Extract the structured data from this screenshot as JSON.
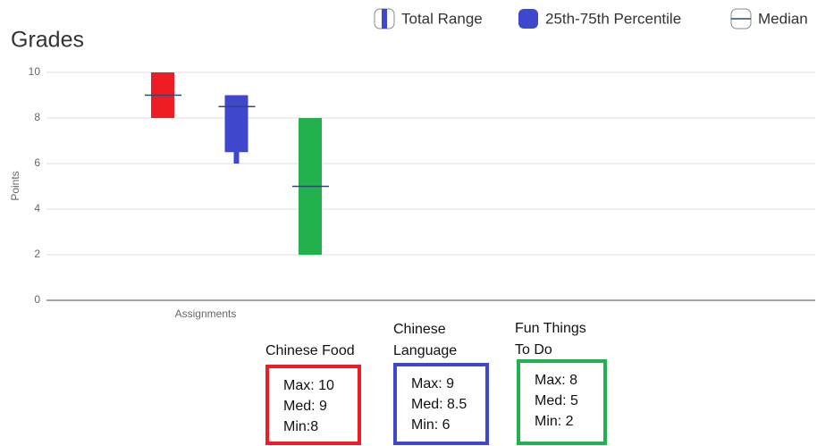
{
  "chart_data": {
    "type": "box",
    "title": "Grades",
    "y_label": "Points",
    "x_label": "Assignments",
    "legend": [
      "Total Range",
      "25th-75th Percentile",
      "Median"
    ],
    "ylim": [
      0,
      10
    ],
    "yticks": [
      0,
      2,
      4,
      6,
      8,
      10
    ],
    "grid": true,
    "median_color": "#2d4a6e",
    "series": [
      {
        "color": "#ee1c25",
        "min": 8,
        "q1": 8,
        "median": 9,
        "q3": 10,
        "max": 10
      },
      {
        "color": "#3f48cc",
        "min": 6,
        "q1": 6.5,
        "median": 8.5,
        "q3": 9,
        "max": 9
      },
      {
        "color": "#22b14c",
        "min": 2,
        "q1": 2,
        "median": 5,
        "q3": 8,
        "max": 8
      }
    ],
    "annotations": [
      {
        "title": "Chinese Food",
        "lines": [
          "Max: 10",
          "Med: 9",
          "Min:8"
        ]
      },
      {
        "title": "Chinese Language",
        "lines": [
          "Max: 9",
          "Med: 8.5",
          "Min: 6"
        ]
      },
      {
        "title": "Fun Things To Do",
        "lines": [
          "Max: 8",
          "Med: 5",
          "Min: 2"
        ]
      }
    ]
  }
}
